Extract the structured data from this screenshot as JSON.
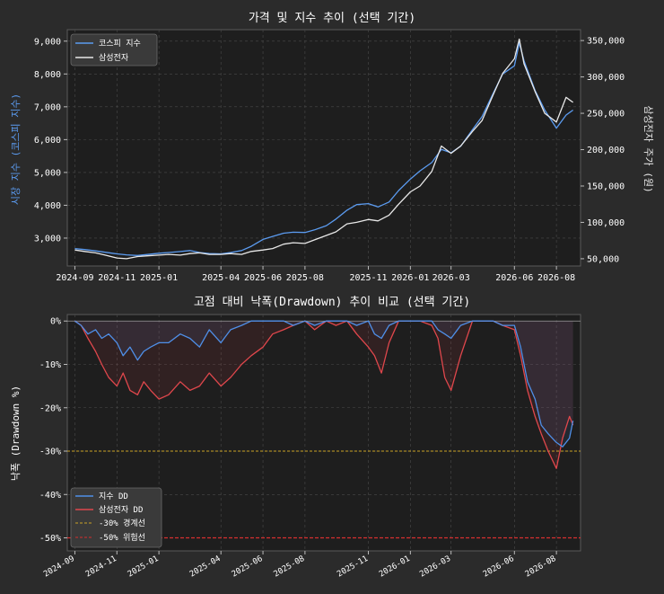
{
  "colors": {
    "background": "#2b2b2b",
    "axes_bg": "#1e1e1e",
    "kospi": "#5b9bf0",
    "samsung": "#e8e8e8",
    "kospi_dd": "#4f8fe8",
    "samsung_dd": "#e0474c",
    "warn30": "#c9a227",
    "danger50": "#d62f2f",
    "grid": "#4a4a4a"
  },
  "chart_data": [
    {
      "type": "line",
      "title": "가격 및 지수 추이 (선택 기간)",
      "ylabel_left": "시장 지수 (코스피 지수)",
      "ylabel_right": "삼성전자 주가 (원)",
      "x_range": [
        "2024-08-21",
        "2026-09-05"
      ],
      "y_range_left": [
        2150,
        9350
      ],
      "y_range_right": [
        40000,
        365000
      ],
      "x_ticks": [
        "2024-09",
        "2024-11",
        "2025-01",
        "2025-04",
        "2025-06",
        "2025-08",
        "2025-11",
        "2026-01",
        "2026-03",
        "2026-06",
        "2026-08"
      ],
      "y_ticks_left": [
        "3,000",
        "4,000",
        "5,000",
        "6,000",
        "7,000",
        "8,000",
        "9,000"
      ],
      "y_ticks_right": [
        "50,000",
        "100,000",
        "150,000",
        "200,000",
        "250,000",
        "300,000",
        "350,000"
      ],
      "legend": [
        "코스피 지수",
        "삼성전자"
      ],
      "legend_position": "top-left",
      "grid": true,
      "x": [
        "2024-09-01",
        "2024-09-15",
        "2024-10-01",
        "2024-10-15",
        "2024-11-01",
        "2024-11-15",
        "2024-12-01",
        "2024-12-15",
        "2025-01-01",
        "2025-01-15",
        "2025-02-01",
        "2025-02-15",
        "2025-03-01",
        "2025-03-15",
        "2025-04-01",
        "2025-04-15",
        "2025-05-01",
        "2025-05-15",
        "2025-06-01",
        "2025-06-15",
        "2025-07-01",
        "2025-07-15",
        "2025-08-01",
        "2025-08-15",
        "2025-09-01",
        "2025-09-15",
        "2025-10-01",
        "2025-10-15",
        "2025-11-01",
        "2025-11-15",
        "2025-12-01",
        "2025-12-15",
        "2026-01-01",
        "2026-01-15",
        "2026-02-01",
        "2026-02-15",
        "2026-03-01",
        "2026-03-15",
        "2026-04-01",
        "2026-04-15",
        "2026-05-01",
        "2026-05-15",
        "2026-06-01",
        "2026-06-08",
        "2026-06-15",
        "2026-07-01",
        "2026-07-15",
        "2026-08-01",
        "2026-08-15",
        "2026-08-25"
      ],
      "series": [
        {
          "name": "코스피 지수",
          "axis": "left",
          "values": [
            2680,
            2650,
            2610,
            2570,
            2520,
            2490,
            2470,
            2500,
            2540,
            2560,
            2590,
            2620,
            2560,
            2530,
            2520,
            2560,
            2620,
            2750,
            2960,
            3050,
            3150,
            3180,
            3170,
            3250,
            3380,
            3580,
            3850,
            4020,
            4050,
            3950,
            4100,
            4450,
            4800,
            5050,
            5300,
            5700,
            5600,
            5800,
            6300,
            6700,
            7400,
            8000,
            8250,
            8950,
            8400,
            7500,
            6900,
            6350,
            6750,
            6900
          ]
        },
        {
          "name": "삼성전자",
          "axis": "right",
          "values": [
            62000,
            60000,
            58000,
            55000,
            51000,
            50000,
            53000,
            54000,
            55000,
            56000,
            55000,
            57000,
            58000,
            56000,
            56000,
            57000,
            56000,
            60000,
            62000,
            64000,
            70000,
            72000,
            71000,
            76000,
            82000,
            87000,
            98000,
            100000,
            104000,
            102000,
            110000,
            125000,
            142000,
            150000,
            170000,
            205000,
            195000,
            205000,
            225000,
            240000,
            275000,
            305000,
            325000,
            352000,
            318000,
            280000,
            250000,
            238000,
            272000,
            265000
          ]
        }
      ]
    },
    {
      "type": "area",
      "title": "고점 대비 낙폭(Drawdown) 추이 비교 (선택 기간)",
      "ylabel": "낙폭 (Drawdown %)",
      "x_range": [
        "2024-08-21",
        "2026-09-05"
      ],
      "y_range": [
        -53,
        1.5
      ],
      "x_ticks": [
        "2024-09",
        "2024-11",
        "2025-01",
        "2025-04",
        "2025-06",
        "2025-08",
        "2025-11",
        "2026-01",
        "2026-03",
        "2026-06",
        "2026-08"
      ],
      "y_ticks": [
        "0%",
        "-10%",
        "-20%",
        "-30%",
        "-40%",
        "-50%"
      ],
      "legend": [
        "지수 DD",
        "삼성전자 DD",
        "-30% 경계선",
        "-50% 위험선"
      ],
      "legend_position": "bottom-left",
      "grid": true,
      "thresholds": [
        -30,
        -50
      ],
      "x": [
        "2024-09-01",
        "2024-09-10",
        "2024-09-20",
        "2024-10-01",
        "2024-10-10",
        "2024-10-20",
        "2024-11-01",
        "2024-11-10",
        "2024-11-20",
        "2024-12-01",
        "2024-12-10",
        "2024-12-20",
        "2025-01-01",
        "2025-01-15",
        "2025-02-01",
        "2025-02-15",
        "2025-03-01",
        "2025-03-15",
        "2025-04-01",
        "2025-04-15",
        "2025-05-01",
        "2025-05-15",
        "2025-06-01",
        "2025-06-15",
        "2025-07-01",
        "2025-07-15",
        "2025-08-01",
        "2025-08-15",
        "2025-09-01",
        "2025-09-15",
        "2025-10-01",
        "2025-10-15",
        "2025-11-01",
        "2025-11-10",
        "2025-11-20",
        "2025-12-01",
        "2025-12-15",
        "2026-01-01",
        "2026-01-15",
        "2026-02-01",
        "2026-02-10",
        "2026-02-20",
        "2026-03-01",
        "2026-03-15",
        "2026-04-01",
        "2026-04-15",
        "2026-05-01",
        "2026-05-15",
        "2026-06-01",
        "2026-06-10",
        "2026-06-20",
        "2026-07-01",
        "2026-07-10",
        "2026-07-20",
        "2026-08-01",
        "2026-08-10",
        "2026-08-20",
        "2026-08-25"
      ],
      "series": [
        {
          "name": "지수 DD",
          "values": [
            0,
            -1,
            -3,
            -2,
            -4,
            -3,
            -5,
            -8,
            -6,
            -9,
            -7,
            -6,
            -5,
            -5,
            -3,
            -4,
            -6,
            -2,
            -5,
            -2,
            -1,
            0,
            0,
            0,
            0,
            -1,
            0,
            -1,
            0,
            0,
            0,
            -1,
            0,
            -3,
            -4,
            -1,
            0,
            0,
            0,
            0,
            -2,
            -3,
            -4,
            -1,
            0,
            0,
            0,
            -1,
            -1,
            -6,
            -14,
            -18,
            -24,
            -26,
            -28,
            -29,
            -27,
            -23
          ]
        },
        {
          "name": "삼성전자 DD",
          "values": [
            0,
            -1,
            -4,
            -7,
            -10,
            -13,
            -15,
            -12,
            -16,
            -17,
            -14,
            -16,
            -18,
            -17,
            -14,
            -16,
            -15,
            -12,
            -15,
            -13,
            -10,
            -8,
            -6,
            -3,
            -2,
            -1,
            0,
            -2,
            0,
            -1,
            0,
            -3,
            -6,
            -8,
            -12,
            -5,
            0,
            0,
            0,
            -1,
            -4,
            -13,
            -16,
            -8,
            0,
            0,
            0,
            -1,
            -2,
            -8,
            -16,
            -22,
            -26,
            -30,
            -34,
            -27,
            -22,
            -24
          ]
        }
      ]
    }
  ]
}
